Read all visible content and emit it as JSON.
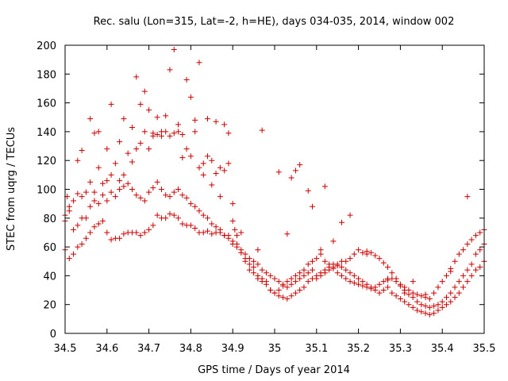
{
  "chart_data": {
    "type": "scatter",
    "title": "Rec. salu (Lon=315, Lat=-2, h=HE), days 034-035, 2014, window 002",
    "xlabel": "GPS time / Days of year 2014",
    "ylabel": "STEC from uqrg / TECUs",
    "xlim": [
      34.5,
      35.5
    ],
    "ylim": [
      0,
      200
    ],
    "xticks": [
      34.5,
      34.6,
      34.7,
      34.8,
      34.9,
      35,
      35.1,
      35.2,
      35.3,
      35.4,
      35.5
    ],
    "xtick_labels": [
      "34.5",
      "34.6",
      "34.7",
      "34.8",
      "34.9",
      "35",
      "35.1",
      "35.2",
      "35.3",
      "35.4",
      "35.5"
    ],
    "yticks": [
      0,
      20,
      40,
      60,
      80,
      100,
      120,
      140,
      160,
      180,
      200
    ],
    "ytick_labels": [
      "0",
      "20",
      "40",
      "60",
      "80",
      "100",
      "120",
      "140",
      "160",
      "180",
      "200"
    ],
    "marker": "+",
    "color": "#cc0000",
    "grid": false,
    "series": [
      {
        "name": "STEC",
        "x": [
          34.5,
          34.505,
          34.51,
          34.52,
          34.53,
          34.54,
          34.55,
          34.56,
          34.57,
          34.58,
          34.59,
          34.6,
          34.61,
          34.62,
          34.63,
          34.64,
          34.65,
          34.66,
          34.67,
          34.68,
          34.69,
          34.7,
          34.71,
          34.72,
          34.73,
          34.74,
          34.75,
          34.76,
          34.77,
          34.78,
          34.79,
          34.8,
          34.81,
          34.82,
          34.83,
          34.84,
          34.85,
          34.86,
          34.87,
          34.88,
          34.89,
          34.9,
          34.905,
          34.91,
          34.92,
          34.93,
          34.94,
          34.95,
          34.96,
          34.97,
          34.98,
          34.99,
          35.0,
          35.01,
          35.02,
          35.03,
          35.04,
          35.05,
          35.06,
          35.07,
          35.08,
          35.09,
          35.1,
          35.11,
          35.12,
          35.13,
          35.14,
          35.15,
          35.16,
          35.17,
          35.18,
          35.19,
          35.2,
          35.21,
          35.22,
          35.23,
          35.24,
          35.25,
          35.26,
          35.27,
          35.28,
          35.29,
          35.3,
          35.31,
          35.32,
          35.33,
          35.34,
          35.35,
          35.36,
          35.37,
          35.38,
          35.39,
          35.4,
          35.41,
          35.42,
          35.43,
          35.44,
          35.45,
          35.46,
          35.47,
          35.48,
          35.49,
          35.5,
          34.5,
          34.51,
          34.52,
          34.53,
          34.54,
          34.55,
          34.56,
          34.57,
          34.58,
          34.59,
          34.6,
          34.61,
          34.62,
          34.63,
          34.64,
          34.65,
          34.66,
          34.67,
          34.68,
          34.69,
          34.7,
          34.71,
          34.72,
          34.73,
          34.74,
          34.75,
          34.76,
          34.77,
          34.78,
          34.79,
          34.8,
          34.81,
          34.82,
          34.83,
          34.84,
          34.85,
          34.86,
          34.87,
          34.88,
          34.89,
          34.9,
          34.91,
          34.92,
          34.93,
          34.94,
          34.95,
          34.96,
          34.97,
          34.98,
          34.99,
          35.0,
          35.01,
          35.02,
          35.03,
          35.04,
          35.05,
          35.06,
          35.07,
          35.08,
          35.09,
          35.1,
          35.11,
          35.12,
          35.13,
          35.14,
          35.15,
          35.16,
          35.17,
          35.18,
          35.19,
          35.2,
          35.21,
          35.22,
          35.23,
          35.24,
          35.25,
          35.26,
          35.27,
          35.28,
          35.29,
          35.3,
          35.31,
          35.32,
          35.33,
          35.34,
          35.35,
          35.36,
          35.37,
          35.38,
          35.39,
          35.4,
          35.41,
          35.42,
          35.43,
          35.44,
          35.45,
          35.46,
          35.47,
          35.48,
          35.49,
          35.5,
          34.5,
          34.51,
          34.52,
          34.53,
          34.54,
          34.55,
          34.56,
          34.57,
          34.58,
          34.59,
          34.6,
          34.61,
          34.62,
          34.63,
          34.64,
          34.65,
          34.66,
          34.67,
          34.68,
          34.69,
          34.7,
          34.71,
          34.72,
          34.73,
          34.74,
          34.75,
          34.76,
          34.77,
          34.78,
          34.79,
          34.8,
          34.81,
          34.82,
          34.83,
          34.84,
          34.85,
          34.86,
          34.87,
          34.88,
          34.89,
          34.9,
          34.91,
          34.92,
          34.93,
          34.94,
          34.95,
          34.96,
          34.97,
          34.98,
          34.99,
          35.0,
          35.01,
          35.02,
          35.03,
          35.04,
          35.05,
          35.06,
          35.07,
          35.08,
          35.09,
          35.1,
          35.11,
          35.12,
          35.13,
          35.14,
          35.15,
          35.16,
          35.17,
          35.18,
          35.19,
          35.2,
          35.21,
          35.22,
          35.23,
          35.24,
          35.25,
          35.26,
          35.27,
          35.28,
          35.29,
          35.3,
          35.31,
          35.32,
          35.33,
          35.34,
          35.35,
          35.36,
          35.37,
          35.38,
          35.39,
          35.4,
          35.41,
          35.42,
          35.43,
          35.44,
          35.45,
          35.46,
          35.47,
          35.48,
          35.49,
          35.5,
          34.56,
          34.58,
          34.61,
          34.64,
          34.67,
          34.68,
          34.69,
          34.7,
          34.72,
          34.75,
          34.76,
          34.77,
          34.79,
          34.8,
          34.82,
          34.84,
          34.86,
          34.88,
          34.89,
          34.97,
          35.04,
          35.05,
          35.06,
          35.08,
          35.09,
          35.12,
          35.16,
          35.18,
          35.46,
          34.53,
          34.54,
          34.57,
          34.6,
          34.63,
          34.66,
          34.71,
          34.73,
          34.74,
          34.78,
          34.81,
          34.83,
          34.85,
          34.87,
          34.9,
          34.96,
          35.01,
          35.03,
          35.11,
          35.14,
          35.22,
          35.27,
          35.31,
          35.33,
          35.36,
          35.42
        ],
        "y": [
          78,
          95,
          88,
          92,
          97,
          95,
          98,
          105,
          98,
          115,
          104,
          106,
          110,
          118,
          106,
          110,
          125,
          119,
          128,
          132,
          140,
          128,
          137,
          138,
          140,
          140,
          137,
          139,
          140,
          122,
          128,
          123,
          140,
          115,
          118,
          123,
          120,
          111,
          115,
          113,
          118,
          90,
          72,
          68,
          70,
          52,
          44,
          46,
          40,
          38,
          36,
          30,
          28,
          26,
          25,
          24,
          26,
          28,
          30,
          32,
          36,
          38,
          40,
          42,
          44,
          46,
          48,
          47,
          50,
          50,
          52,
          55,
          58,
          56,
          55,
          56,
          54,
          52,
          49,
          46,
          42,
          38,
          34,
          32,
          30,
          28,
          27,
          26,
          25,
          24,
          28,
          32,
          36,
          40,
          45,
          50,
          55,
          58,
          62,
          65,
          68,
          70,
          72,
          58,
          52,
          55,
          60,
          62,
          66,
          70,
          74,
          76,
          78,
          70,
          65,
          66,
          66,
          69,
          70,
          70,
          70,
          68,
          70,
          72,
          75,
          82,
          80,
          80,
          83,
          82,
          80,
          76,
          75,
          75,
          73,
          70,
          70,
          71,
          69,
          70,
          70,
          68,
          68,
          62,
          60,
          56,
          50,
          48,
          42,
          38,
          36,
          34,
          30,
          28,
          30,
          33,
          36,
          38,
          40,
          42,
          44,
          48,
          50,
          52,
          55,
          50,
          48,
          45,
          42,
          40,
          38,
          36,
          35,
          34,
          33,
          32,
          31,
          32,
          34,
          36,
          37,
          38,
          36,
          33,
          30,
          27,
          25,
          22,
          20,
          19,
          18,
          19,
          20,
          22,
          25,
          28,
          32,
          36,
          40,
          44,
          48,
          55,
          58,
          62,
          82,
          85,
          72,
          75,
          80,
          80,
          88,
          92,
          90,
          96,
          92,
          98,
          95,
          100,
          102,
          104,
          100,
          96,
          94,
          92,
          98,
          101,
          105,
          100,
          96,
          95,
          98,
          100,
          96,
          94,
          90,
          88,
          85,
          82,
          80,
          76,
          74,
          72,
          68,
          66,
          64,
          62,
          58,
          55,
          52,
          50,
          48,
          44,
          42,
          40,
          38,
          36,
          34,
          32,
          34,
          36,
          38,
          40,
          42,
          44,
          38,
          40,
          42,
          44,
          46,
          48,
          46,
          44,
          42,
          40,
          38,
          36,
          34,
          32,
          30,
          28,
          30,
          32,
          28,
          26,
          24,
          22,
          20,
          18,
          16,
          15,
          14,
          13,
          14,
          16,
          18,
          20,
          22,
          25,
          28,
          32,
          36,
          40,
          44,
          46,
          50,
          149,
          140,
          159,
          149,
          178,
          159,
          168,
          155,
          150,
          183,
          197,
          145,
          176,
          164,
          188,
          149,
          147,
          145,
          139,
          141,
          108,
          113,
          117,
          99,
          88,
          102,
          77,
          82,
          95,
          120,
          127,
          139,
          128,
          133,
          143,
          139,
          137,
          151,
          138,
          148,
          110,
          103,
          95,
          78,
          58,
          112,
          69,
          58,
          64,
          57,
          38,
          28,
          36,
          27,
          43
        ]
      }
    ]
  }
}
